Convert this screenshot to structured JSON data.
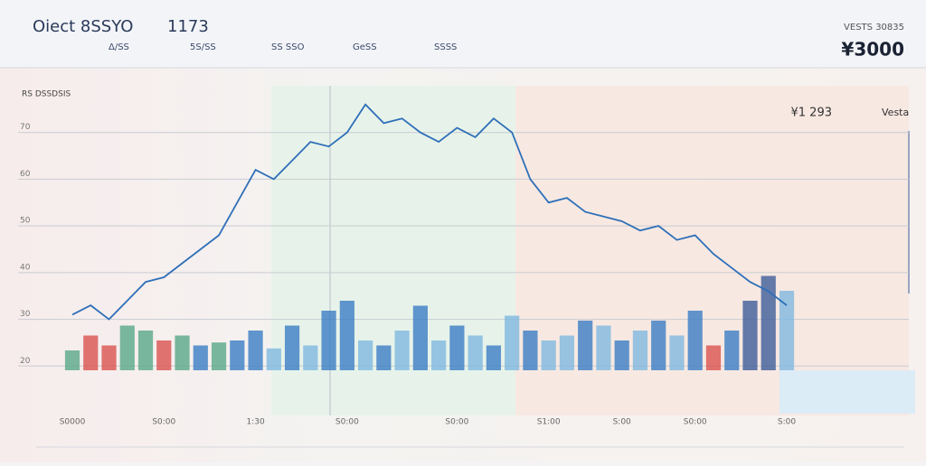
{
  "header": {
    "title": "Oiect 8SSYO",
    "code": "1173",
    "tabs": [
      "Δ/SS",
      "5S/SS",
      "SS SSO",
      "GeSS",
      "SSSS"
    ],
    "price_caption": "VESTS 30835",
    "price": "¥3000"
  },
  "chart_data": {
    "type": "line",
    "corner_label": "RS DSSDSIS",
    "last_price": "¥1 293",
    "last_label": "Vesta",
    "categories": [
      "S0000",
      null,
      null,
      null,
      null,
      "S0:00",
      null,
      null,
      null,
      null,
      "1:30",
      null,
      null,
      null,
      null,
      "S0:00",
      null,
      null,
      null,
      null,
      null,
      "S0:00",
      null,
      null,
      null,
      null,
      "S1:00",
      null,
      null,
      null,
      "S:00",
      null,
      null,
      null,
      "S0:00",
      null,
      null,
      null,
      null,
      "S:00"
    ],
    "series": [
      {
        "color": "#2f6fb8",
        "values": [
          31,
          33,
          30,
          34,
          38,
          39,
          42,
          45,
          48,
          55,
          62,
          60,
          64,
          68,
          67,
          70,
          76,
          72,
          73,
          70,
          68,
          71,
          69,
          73,
          70,
          60,
          55,
          56,
          53,
          52,
          51,
          49,
          50,
          47,
          48,
          44,
          41,
          38,
          36,
          33
        ]
      }
    ],
    "ylim": [
      10,
      80
    ],
    "yticks": [
      20,
      30,
      40,
      50,
      60,
      70
    ],
    "grid": true,
    "volume": {
      "values": [
        20,
        35,
        25,
        45,
        40,
        30,
        35,
        25,
        28,
        30,
        40,
        22,
        45,
        25,
        60,
        70,
        30,
        25,
        40,
        65,
        30,
        45,
        35,
        25,
        55,
        40,
        30,
        35,
        50,
        45,
        30,
        40,
        50,
        35,
        60,
        25,
        40,
        70,
        95,
        80
      ],
      "colors": [
        "#5aa88a",
        "#d9534f",
        "#d9534f",
        "#5aa88a",
        "#5aa88a",
        "#d9534f",
        "#5aa88a",
        "#3b7dc4",
        "#5aa88a",
        "#3b7dc4",
        "#3b7dc4",
        "#7fb8e0",
        "#3b7dc4",
        "#7fb8e0",
        "#3b7dc4",
        "#3b7dc4",
        "#7fb8e0",
        "#3b7dc4",
        "#7fb8e0",
        "#3b7dc4",
        "#7fb8e0",
        "#3b7dc4",
        "#7fb8e0",
        "#3b7dc4",
        "#7fb8e0",
        "#3b7dc4",
        "#7fb8e0",
        "#7fb8e0",
        "#3b7dc4",
        "#7fb8e0",
        "#3b7dc4",
        "#7fb8e0",
        "#3b7dc4",
        "#7fb8e0",
        "#3b7dc4",
        "#d9534f",
        "#3b7dc4",
        "#3d5c9a",
        "#3d5c9a",
        "#7fb8e0"
      ]
    },
    "y2lim": [
      0,
      100
    ]
  }
}
